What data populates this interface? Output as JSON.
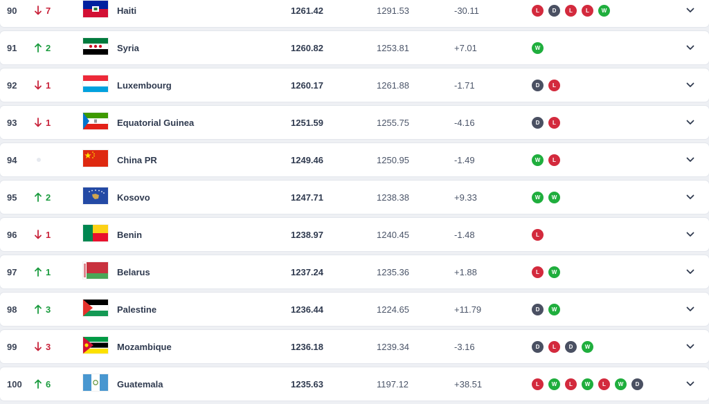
{
  "rows": [
    {
      "rank": "90",
      "move_dir": "down",
      "move_val": "7",
      "team": "Haiti",
      "flag": "haiti-flag",
      "points": "1261.42",
      "prev": "1291.53",
      "diff": "-30.11",
      "form": [
        "L",
        "D",
        "L",
        "L",
        "W"
      ]
    },
    {
      "rank": "91",
      "move_dir": "up",
      "move_val": "2",
      "team": "Syria",
      "flag": "syria-flag",
      "points": "1260.82",
      "prev": "1253.81",
      "diff": "+7.01",
      "form": [
        "W"
      ]
    },
    {
      "rank": "92",
      "move_dir": "down",
      "move_val": "1",
      "team": "Luxembourg",
      "flag": "luxembourg-flag",
      "points": "1260.17",
      "prev": "1261.88",
      "diff": "-1.71",
      "form": [
        "D",
        "L"
      ]
    },
    {
      "rank": "93",
      "move_dir": "down",
      "move_val": "1",
      "team": "Equatorial Guinea",
      "flag": "equatorial-guinea-flag",
      "points": "1251.59",
      "prev": "1255.75",
      "diff": "-4.16",
      "form": [
        "D",
        "L"
      ]
    },
    {
      "rank": "94",
      "move_dir": "none",
      "move_val": "",
      "team": "China PR",
      "flag": "china-flag",
      "points": "1249.46",
      "prev": "1250.95",
      "diff": "-1.49",
      "form": [
        "W",
        "L"
      ]
    },
    {
      "rank": "95",
      "move_dir": "up",
      "move_val": "2",
      "team": "Kosovo",
      "flag": "kosovo-flag",
      "points": "1247.71",
      "prev": "1238.38",
      "diff": "+9.33",
      "form": [
        "W",
        "W"
      ]
    },
    {
      "rank": "96",
      "move_dir": "down",
      "move_val": "1",
      "team": "Benin",
      "flag": "benin-flag",
      "points": "1238.97",
      "prev": "1240.45",
      "diff": "-1.48",
      "form": [
        "L"
      ]
    },
    {
      "rank": "97",
      "move_dir": "up",
      "move_val": "1",
      "team": "Belarus",
      "flag": "belarus-flag",
      "points": "1237.24",
      "prev": "1235.36",
      "diff": "+1.88",
      "form": [
        "L",
        "W"
      ]
    },
    {
      "rank": "98",
      "move_dir": "up",
      "move_val": "3",
      "team": "Palestine",
      "flag": "palestine-flag",
      "points": "1236.44",
      "prev": "1224.65",
      "diff": "+11.79",
      "form": [
        "D",
        "W"
      ]
    },
    {
      "rank": "99",
      "move_dir": "down",
      "move_val": "3",
      "team": "Mozambique",
      "flag": "mozambique-flag",
      "points": "1236.18",
      "prev": "1239.34",
      "diff": "-3.16",
      "form": [
        "D",
        "L",
        "D",
        "W"
      ]
    },
    {
      "rank": "100",
      "move_dir": "up",
      "move_val": "6",
      "team": "Guatemala",
      "flag": "guatemala-flag",
      "points": "1235.63",
      "prev": "1197.12",
      "diff": "+38.51",
      "form": [
        "L",
        "W",
        "L",
        "W",
        "L",
        "W",
        "D"
      ]
    }
  ],
  "colors": {
    "up": "#1a9b3e",
    "down": "#c8233b",
    "win": "#1fae3d",
    "loss": "#d32a3d",
    "draw": "#4a5062"
  },
  "icons": {
    "expand": "chevron-down-icon",
    "up": "arrow-up-icon",
    "down": "arrow-down-icon",
    "no_change": "dot-icon"
  }
}
